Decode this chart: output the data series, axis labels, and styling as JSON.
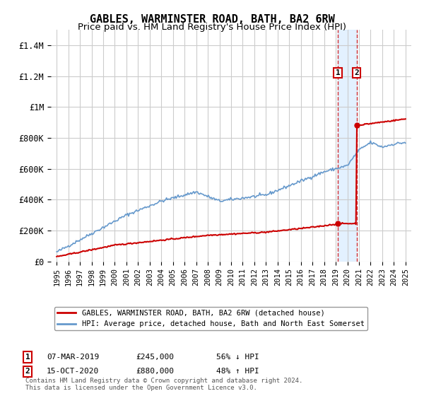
{
  "title": "GABLES, WARMINSTER ROAD, BATH, BA2 6RW",
  "subtitle": "Price paid vs. HM Land Registry's House Price Index (HPI)",
  "title_fontsize": 11,
  "subtitle_fontsize": 9.5,
  "bg_color": "#ffffff",
  "plot_bg_color": "#ffffff",
  "grid_color": "#cccccc",
  "hpi_color": "#6699cc",
  "price_color": "#cc0000",
  "sale1_date": "07-MAR-2019",
  "sale1_price": 245000,
  "sale1_label": "56% ↓ HPI",
  "sale1_x": 2019.18,
  "sale2_date": "15-OCT-2020",
  "sale2_price": 880000,
  "sale2_label": "48% ↑ HPI",
  "sale2_x": 2020.79,
  "ylim": [
    0,
    1500000
  ],
  "xlim": [
    1994.5,
    2025.5
  ],
  "yticks": [
    0,
    200000,
    400000,
    600000,
    800000,
    1000000,
    1200000,
    1400000
  ],
  "ytick_labels": [
    "£0",
    "£200K",
    "£400K",
    "£600K",
    "£800K",
    "£1M",
    "£1.2M",
    "£1.4M"
  ],
  "xticks": [
    1995,
    1996,
    1997,
    1998,
    1999,
    2000,
    2001,
    2002,
    2003,
    2004,
    2005,
    2006,
    2007,
    2008,
    2009,
    2010,
    2011,
    2012,
    2013,
    2014,
    2015,
    2016,
    2017,
    2018,
    2019,
    2020,
    2021,
    2022,
    2023,
    2024,
    2025
  ],
  "legend_label1": "GABLES, WARMINSTER ROAD, BATH, BA2 6RW (detached house)",
  "legend_label2": "HPI: Average price, detached house, Bath and North East Somerset",
  "footnote": "Contains HM Land Registry data © Crown copyright and database right 2024.\nThis data is licensed under the Open Government Licence v3.0.",
  "shade_x1": 2019.18,
  "shade_x2": 2020.79
}
